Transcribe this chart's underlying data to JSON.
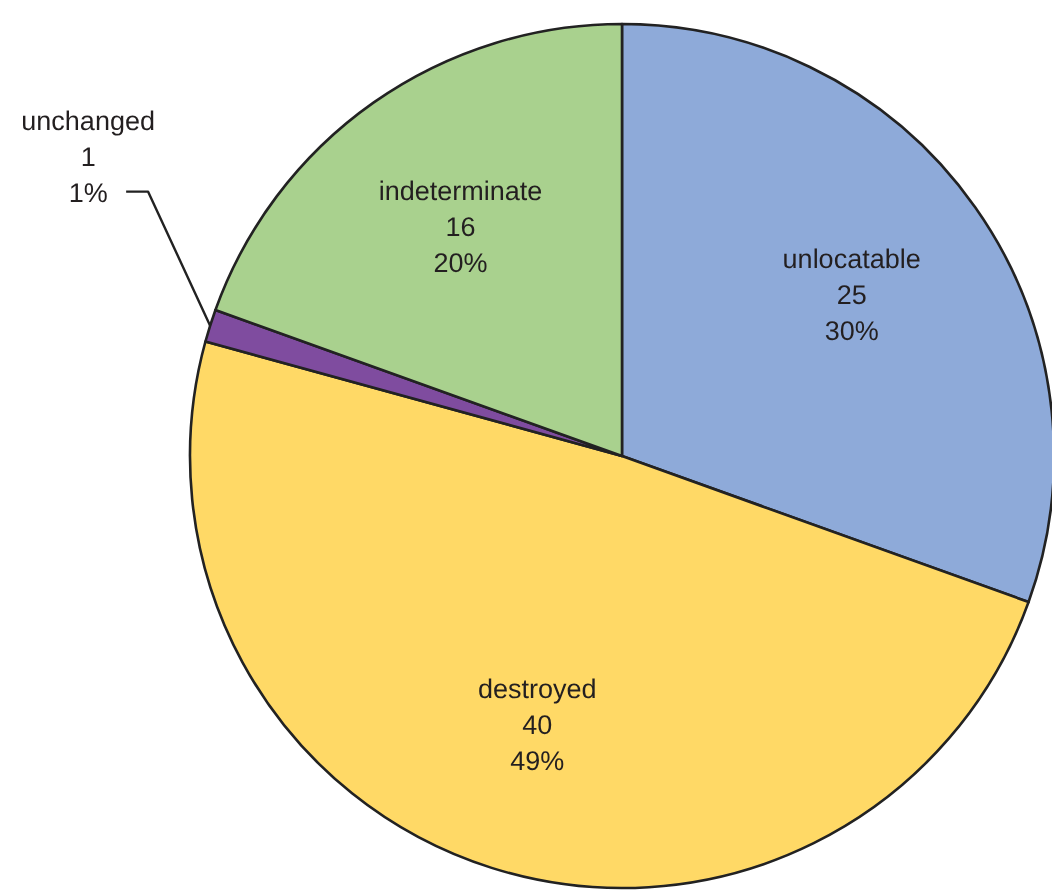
{
  "chart_data": {
    "type": "pie",
    "categories": [
      "unlocatable",
      "destroyed",
      "unchanged",
      "indeterminate"
    ],
    "values": [
      25,
      40,
      1,
      16
    ],
    "colors": [
      "#8eaad9",
      "#ffd966",
      "#7f4c9f",
      "#a9d18e"
    ],
    "value_labels": [
      "25\n30%",
      "40\n49%",
      "1\n1%",
      "16\n20%"
    ]
  }
}
